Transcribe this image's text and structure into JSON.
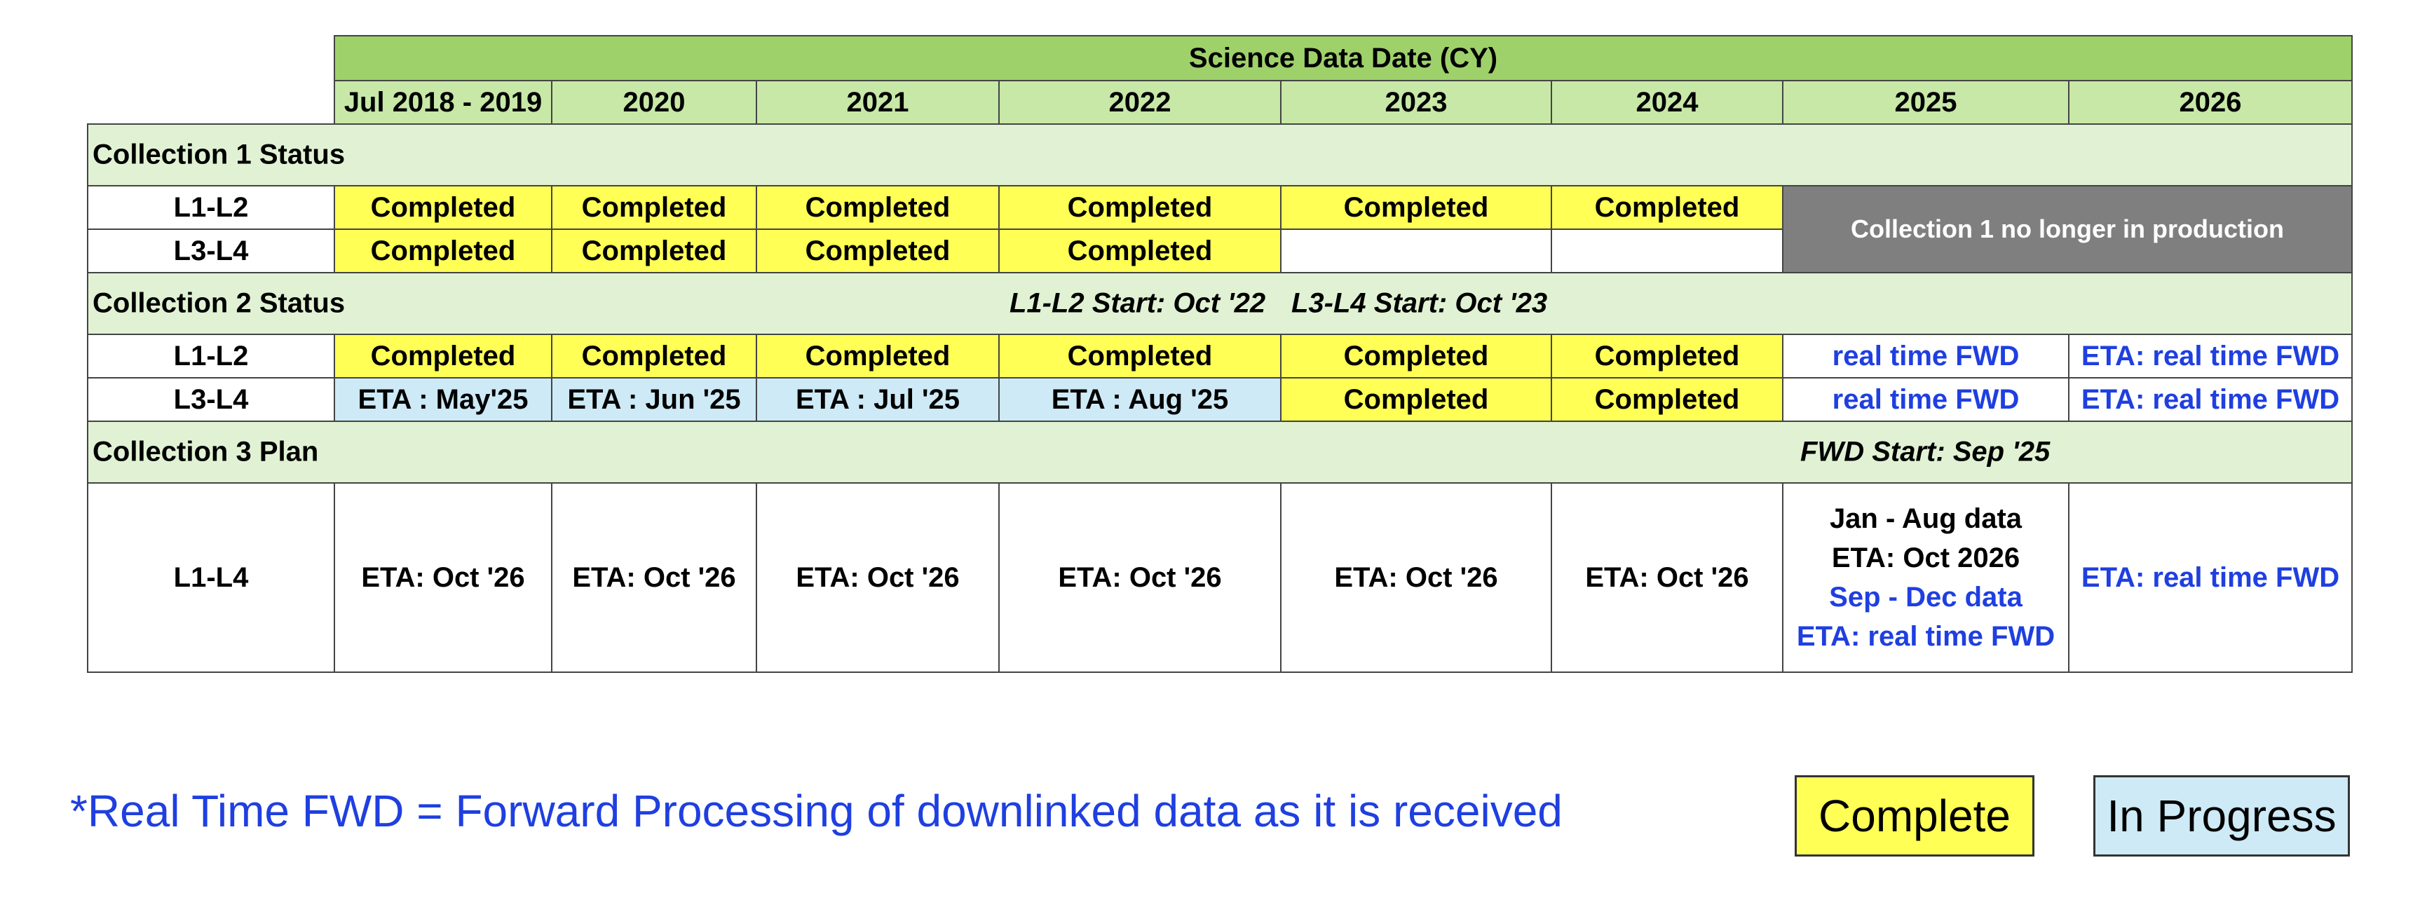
{
  "header": {
    "title": "Science Data Date (CY)",
    "years": [
      "Jul 2018 - 2019",
      "2020",
      "2021",
      "2022",
      "2023",
      "2024",
      "2025",
      "2026"
    ]
  },
  "collection1": {
    "title": "Collection 1 Status",
    "rows": [
      {
        "label": "L1-L2",
        "cells": [
          "Completed",
          "Completed",
          "Completed",
          "Completed",
          "Completed",
          "Completed"
        ]
      },
      {
        "label": "L3-L4",
        "cells": [
          "Completed",
          "Completed",
          "Completed",
          "Completed",
          "",
          ""
        ]
      }
    ],
    "no_longer": "Collection 1 no longer in production"
  },
  "collection2": {
    "title": "Collection 2 Status",
    "note1": "L1-L2 Start: Oct '22",
    "note2": "L3-L4 Start: Oct '23",
    "rows": [
      {
        "label": "L1-L2",
        "cells": [
          "Completed",
          "Completed",
          "Completed",
          "Completed",
          "Completed",
          "Completed",
          "real time FWD",
          "ETA: real time FWD"
        ]
      },
      {
        "label": "L3-L4",
        "cells": [
          "ETA : May'25",
          "ETA : Jun '25",
          "ETA : Jul '25",
          "ETA : Aug '25",
          "Completed",
          "Completed",
          "real time FWD",
          "ETA: real time FWD"
        ]
      }
    ]
  },
  "collection3": {
    "title": "Collection 3 Plan",
    "note": "FWD Start: Sep '25",
    "row": {
      "label": "L1-L4",
      "cells": [
        "ETA: Oct '26",
        "ETA: Oct '26",
        "ETA: Oct '26",
        "ETA: Oct '26",
        "ETA: Oct '26",
        "ETA: Oct '26"
      ],
      "c2025": [
        "Jan - Aug data",
        "ETA: Oct 2026",
        "Sep - Dec data",
        "ETA: real time FWD"
      ],
      "c2026": "ETA: real time FWD"
    }
  },
  "footnote": "*Real Time FWD = Forward Processing of downlinked data as it is received",
  "legend": {
    "complete": "Complete",
    "in_progress": "In Progress"
  },
  "colors": {
    "header_green": "#9fd16a",
    "year_green": "#c7e8a7",
    "section_green": "#e0f2d3",
    "complete_yellow": "#ffff55",
    "in_progress_blue": "#cdeaf6",
    "no_longer_gray": "#7f7f7f",
    "fwd_blue_text": "#1f3fe0"
  }
}
